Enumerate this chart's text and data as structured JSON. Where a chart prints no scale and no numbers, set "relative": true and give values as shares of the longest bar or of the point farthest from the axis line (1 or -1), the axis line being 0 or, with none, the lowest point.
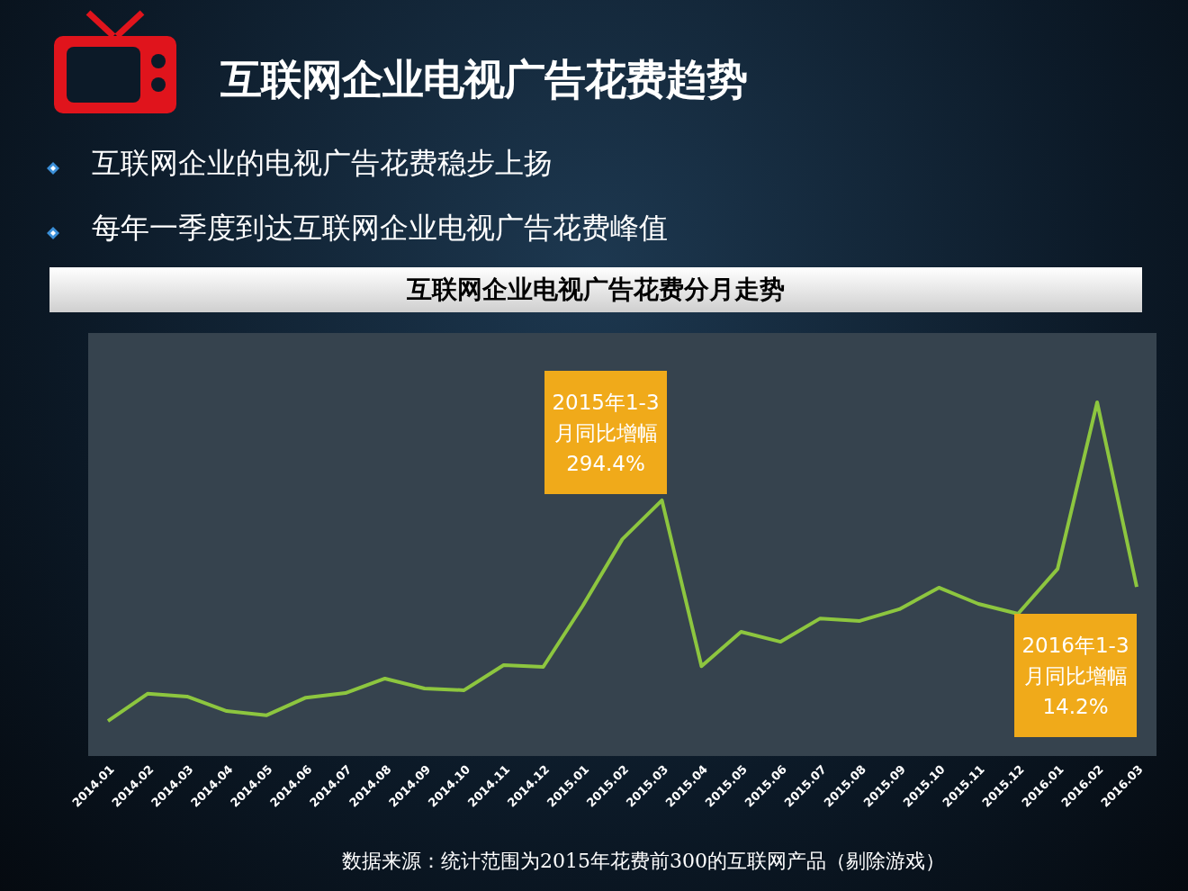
{
  "chart_data": {
    "type": "line",
    "title": "互联网企业电视广告花费趋势",
    "subtitle": "互联网企业电视广告花费分月走势",
    "categories": [
      "2014.01",
      "2014.02",
      "2014.03",
      "2014.04",
      "2014.05",
      "2014.06",
      "2014.07",
      "2014.08",
      "2014.09",
      "2014.10",
      "2014.11",
      "2014.12",
      "2015.01",
      "2015.02",
      "2015.03",
      "2015.04",
      "2015.05",
      "2015.06",
      "2015.07",
      "2015.08",
      "2015.09",
      "2015.10",
      "2015.11",
      "2015.12",
      "2016.01",
      "2016.02",
      "2016.03"
    ],
    "series": [
      {
        "color": "#8dc63f",
        "values": [
          0.099,
          0.176,
          0.168,
          0.127,
          0.115,
          0.165,
          0.178,
          0.219,
          0.191,
          0.186,
          0.257,
          0.252,
          0.425,
          0.613,
          0.723,
          0.254,
          0.351,
          0.323,
          0.389,
          0.382,
          0.415,
          0.476,
          0.43,
          0.402,
          0.529,
          1,
          0.478
        ]
      }
    ],
    "relative": true,
    "grid": false,
    "marker": "none",
    "line_style": "solid",
    "annotations": [
      "互联网企业的电视广告花费稳步上扬",
      "每年一季度到达互联网企业电视广告花费峰值",
      "2015年1-3月同比增幅294.4%",
      "2016年1-3月同比增幅14.2%",
      "数据来源：统计范围为2015年花费前300的互联网产品（剔除游戏）"
    ]
  }
}
